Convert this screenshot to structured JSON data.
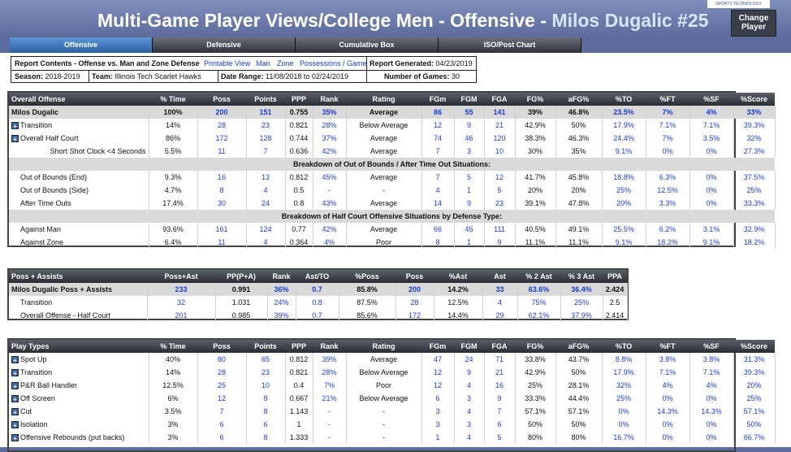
{
  "header": {
    "title": "Multi-Game Player Views/College Men - Offensive - ",
    "player": "Milos Dugalic #25",
    "brand": "SPORTS TECHNOLOGY",
    "change_player": "Change Player"
  },
  "tabs": [
    "Offensive",
    "Defensive",
    "Cumulative Box",
    "ISO/Post Chart"
  ],
  "info": {
    "report_contents_label": "Report Contents - Offense vs. Man and Zone Defense",
    "links": [
      "Printable View",
      "Man",
      "Zone",
      "Possessions / Game"
    ],
    "report_generated_label": "Report Generated:",
    "report_generated": "04/23/2019",
    "season_label": "Season:",
    "season": "2018-2019",
    "team_label": "Team:",
    "team": "Illinois Tech Scarlet Hawks",
    "date_range_label": "Date Range:",
    "date_range": "11/08/2018 to 02/24/2019",
    "games_label": "Number of Games:",
    "games": "30"
  },
  "t1": {
    "headers": [
      "Overall Offense",
      "% Time",
      "Poss",
      "Points",
      "PPP",
      "Rank",
      "Rating",
      "FGm",
      "FGM",
      "FGA",
      "FG%",
      "aFG%",
      "%TO",
      "%FT",
      "%SF",
      "%Score"
    ],
    "rows": [
      {
        "kind": "p",
        "cells": [
          "Milos Dugalic",
          "100%",
          "200",
          "151",
          "0.755",
          "35%",
          "Average",
          "86",
          "55",
          "141",
          "39%",
          "46.8%",
          "23.5%",
          "7%",
          "4%",
          "33%"
        ]
      },
      {
        "kind": "r",
        "plus": true,
        "cells": [
          "Transition",
          "14%",
          "28",
          "23",
          "0.821",
          "28%",
          "Below Average",
          "12",
          "9",
          "21",
          "42.9%",
          "50%",
          "17.9%",
          "7.1%",
          "7.1%",
          "39.3%"
        ]
      },
      {
        "kind": "r",
        "plus": true,
        "cells": [
          "Overall Half Court",
          "86%",
          "172",
          "128",
          "0.744",
          "37%",
          "Average",
          "74",
          "46",
          "120",
          "38.3%",
          "46.3%",
          "24.4%",
          "7%",
          "3.5%",
          "32%"
        ]
      },
      {
        "kind": "r",
        "right": true,
        "cells": [
          "Short Shot Clock <4 Seconds",
          "5.5%",
          "11",
          "7",
          "0.636",
          "42%",
          "Average",
          "7",
          "3",
          "10",
          "30%",
          "35%",
          "9.1%",
          "0%",
          "0%",
          "27.3%"
        ]
      },
      {
        "kind": "s",
        "text": "Breakdown of Out of Bounds / After Time Out Situations:"
      },
      {
        "kind": "r",
        "indent": true,
        "cells": [
          "Out of Bounds (End)",
          "9.3%",
          "16",
          "13",
          "0.812",
          "45%",
          "Average",
          "7",
          "5",
          "12",
          "41.7%",
          "45.8%",
          "18.8%",
          "6.3%",
          "0%",
          "37.5%"
        ]
      },
      {
        "kind": "r",
        "indent": true,
        "cells": [
          "Out of Bounds (Side)",
          "4.7%",
          "8",
          "4",
          "0.5",
          "-",
          "-",
          "4",
          "1",
          "5",
          "20%",
          "20%",
          "25%",
          "12.5%",
          "0%",
          "25%"
        ]
      },
      {
        "kind": "r",
        "indent": true,
        "cells": [
          "After Time Outs",
          "17.4%",
          "30",
          "24",
          "0.8",
          "43%",
          "Average",
          "14",
          "9",
          "23",
          "39.1%",
          "47.8%",
          "20%",
          "3.3%",
          "0%",
          "33.3%"
        ]
      },
      {
        "kind": "s",
        "text": "Breakdown of Half Court Offensive Situations by Defense Type:"
      },
      {
        "kind": "r",
        "indent": true,
        "cells": [
          "Against Man",
          "93.6%",
          "161",
          "124",
          "0.77",
          "42%",
          "Average",
          "66",
          "45",
          "111",
          "40.5%",
          "49.1%",
          "25.5%",
          "6.2%",
          "3.1%",
          "32.9%"
        ]
      },
      {
        "kind": "r",
        "indent": true,
        "cells": [
          "Against Zone",
          "6.4%",
          "11",
          "4",
          "0.364",
          "4%",
          "Poor",
          "8",
          "1",
          "9",
          "11.1%",
          "11.1%",
          "9.1%",
          "18.2%",
          "9.1%",
          "18.2%"
        ]
      }
    ]
  },
  "t2": {
    "headers": [
      "Poss + Assists",
      "Poss+Ast",
      "PP(P+A)",
      "Rank",
      "Ast/TO",
      "%Poss",
      "Poss",
      "%Ast",
      "Ast",
      "% 2 Ast",
      "% 3 Ast",
      "PPA"
    ],
    "rows": [
      {
        "kind": "p",
        "cells": [
          "Milos Dugalic Poss + Assists",
          "233",
          "0.991",
          "36%",
          "0.7",
          "85.8%",
          "200",
          "14.2%",
          "33",
          "63.6%",
          "36.4%",
          "2.424"
        ]
      },
      {
        "kind": "r",
        "indent": true,
        "cells": [
          "Transition",
          "32",
          "1.031",
          "24%",
          "0.8",
          "87.5%",
          "28",
          "12.5%",
          "4",
          "75%",
          "25%",
          "2.5"
        ]
      },
      {
        "kind": "r",
        "indent": true,
        "cells": [
          "Overall Offense - Half Court",
          "201",
          "0.985",
          "39%",
          "0.7",
          "85.6%",
          "172",
          "14.4%",
          "29",
          "62.1%",
          "37.9%",
          "2.414"
        ]
      }
    ]
  },
  "t3": {
    "headers": [
      "Play Types",
      "% Time",
      "Poss",
      "Points",
      "PPP",
      "Rank",
      "Rating",
      "FGm",
      "FGM",
      "FGA",
      "FG%",
      "aFG%",
      "%TO",
      "%FT",
      "%SF",
      "%Score"
    ],
    "rows": [
      {
        "kind": "r",
        "plus": true,
        "cells": [
          "Spot Up",
          "40%",
          "80",
          "65",
          "0.812",
          "39%",
          "Average",
          "47",
          "24",
          "71",
          "33.8%",
          "43.7%",
          "8.8%",
          "3.8%",
          "3.8%",
          "31.3%"
        ]
      },
      {
        "kind": "r",
        "plus": true,
        "cells": [
          "Transition",
          "14%",
          "28",
          "23",
          "0.821",
          "28%",
          "Below Average",
          "12",
          "9",
          "21",
          "42.9%",
          "50%",
          "17.9%",
          "7.1%",
          "7.1%",
          "39.3%"
        ]
      },
      {
        "kind": "r",
        "plus": true,
        "cells": [
          "P&R Ball Handler",
          "12.5%",
          "25",
          "10",
          "0.4",
          "7%",
          "Poor",
          "12",
          "4",
          "16",
          "25%",
          "28.1%",
          "32%",
          "4%",
          "4%",
          "20%"
        ]
      },
      {
        "kind": "r",
        "plus": true,
        "cells": [
          "Off Screen",
          "6%",
          "12",
          "8",
          "0.667",
          "21%",
          "Below Average",
          "6",
          "3",
          "9",
          "33.3%",
          "44.4%",
          "25%",
          "0%",
          "0%",
          "25%"
        ]
      },
      {
        "kind": "r",
        "plus": true,
        "cells": [
          "Cut",
          "3.5%",
          "7",
          "8",
          "1.143",
          "-",
          "-",
          "3",
          "4",
          "7",
          "57.1%",
          "57.1%",
          "0%",
          "14.3%",
          "14.3%",
          "57.1%"
        ]
      },
      {
        "kind": "r",
        "plus": true,
        "cells": [
          "Isolation",
          "3%",
          "6",
          "6",
          "1",
          "-",
          "-",
          "3",
          "3",
          "6",
          "50%",
          "50%",
          "0%",
          "0%",
          "0%",
          "50%"
        ]
      },
      {
        "kind": "r",
        "plus": true,
        "cells": [
          "Offensive Rebounds (put backs)",
          "3%",
          "6",
          "8",
          "1.333",
          "-",
          "-",
          "1",
          "4",
          "5",
          "80%",
          "80%",
          "16.7%",
          "0%",
          "0%",
          "66.7%"
        ]
      }
    ]
  }
}
